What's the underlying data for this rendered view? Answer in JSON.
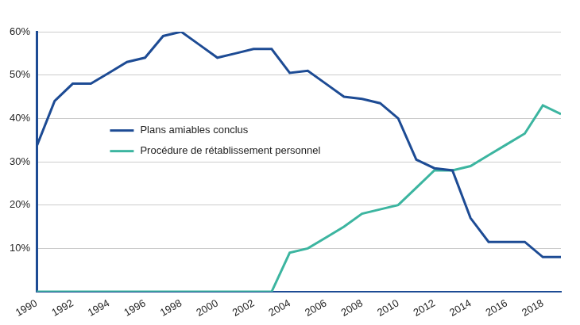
{
  "chart_data": {
    "type": "line",
    "x": [
      1990,
      1991,
      1992,
      1993,
      1994,
      1995,
      1996,
      1997,
      1998,
      1999,
      2000,
      2001,
      2002,
      2003,
      2004,
      2005,
      2006,
      2007,
      2008,
      2009,
      2010,
      2011,
      2012,
      2013,
      2014,
      2015,
      2016,
      2017,
      2018,
      2019
    ],
    "series": [
      {
        "name": "Plans amiables conclus",
        "color": "#1d4b94",
        "values": [
          33.5,
          44,
          48,
          48,
          50.5,
          53,
          54,
          59,
          60,
          57,
          54,
          55,
          56,
          56,
          50.5,
          51,
          48,
          45,
          44.5,
          43.5,
          40,
          30.5,
          28.5,
          28,
          17,
          11.5,
          11.5,
          11.5,
          8,
          8
        ]
      },
      {
        "name": "Procédure de rétablissement personnel",
        "color": "#3cb5a0",
        "values": [
          0,
          0,
          0,
          0,
          0,
          0,
          0,
          0,
          0,
          0,
          0,
          0,
          0,
          0,
          9,
          10,
          12.5,
          15,
          18,
          19,
          20,
          24,
          28,
          28,
          29,
          31.5,
          34,
          36.5,
          43,
          41
        ]
      }
    ],
    "xlim": [
      1990,
      2019
    ],
    "xticks": [
      1990,
      1992,
      1994,
      1996,
      1998,
      2000,
      2002,
      2004,
      2006,
      2008,
      2010,
      2012,
      2014,
      2016,
      2018
    ],
    "ylim": [
      0,
      60
    ],
    "yticks": [
      {
        "value": 10,
        "label": "10%"
      },
      {
        "value": 20,
        "label": "20%"
      },
      {
        "value": 30,
        "label": "30%"
      },
      {
        "value": 40,
        "label": "40%"
      },
      {
        "value": 50,
        "label": "50%"
      },
      {
        "value": 60,
        "label": "60%"
      }
    ],
    "grid": true,
    "legend": "left"
  }
}
